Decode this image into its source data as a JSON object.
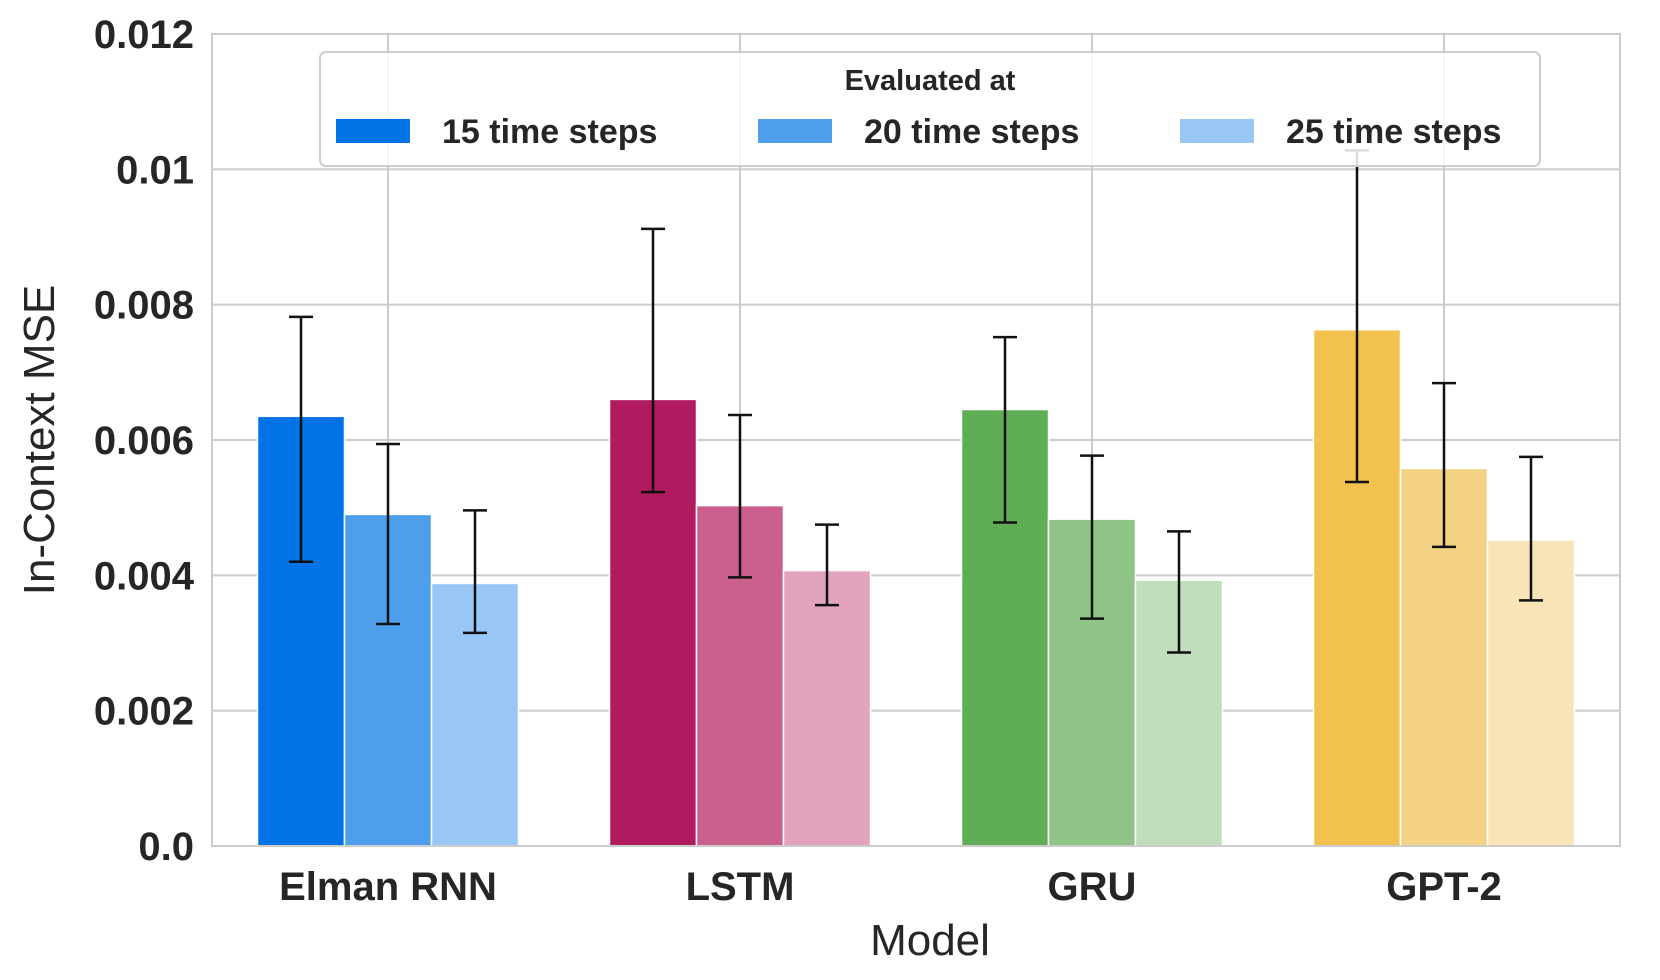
{
  "chart_data": {
    "type": "bar",
    "categories": [
      "Elman RNN",
      "LSTM",
      "GRU",
      "GPT-2"
    ],
    "xlabel": "Model",
    "ylabel": "In-Context MSE",
    "ylim": [
      0,
      0.012
    ],
    "yticks": [
      0,
      0.002,
      0.004,
      0.006,
      0.008,
      0.01,
      0.012
    ],
    "ytick_labels": [
      "0.0",
      "0.002",
      "0.004",
      "0.006",
      "0.008",
      "0.01",
      "0.012"
    ],
    "grid": true,
    "legend": {
      "title": "Evaluated at",
      "placement": "top-center",
      "entries": [
        "15 time steps",
        "20 time steps",
        "25 time steps"
      ]
    },
    "series": [
      {
        "name": "15 time steps",
        "values": [
          0.00635,
          0.0066,
          0.00645,
          0.00763
        ],
        "error_low": [
          0.0042,
          0.00523,
          0.00478,
          0.00538
        ],
        "error_high": [
          0.00782,
          0.00912,
          0.00752,
          0.01028
        ]
      },
      {
        "name": "20 time steps",
        "values": [
          0.0049,
          0.00503,
          0.00483,
          0.00558
        ],
        "error_low": [
          0.00328,
          0.00397,
          0.00336,
          0.00442
        ],
        "error_high": [
          0.00594,
          0.00637,
          0.00577,
          0.00684
        ]
      },
      {
        "name": "25 time steps",
        "values": [
          0.00388,
          0.00407,
          0.00393,
          0.00452
        ],
        "error_low": [
          0.00315,
          0.00356,
          0.00286,
          0.00363
        ],
        "error_high": [
          0.00496,
          0.00475,
          0.00465,
          0.00575
        ]
      }
    ],
    "colors": [
      [
        "#0073E6",
        "#4D9EEB",
        "#99C7F5"
      ],
      [
        "#B01A5E",
        "#CB5F8E",
        "#E1A3BE"
      ],
      [
        "#5FAD55",
        "#8FC487",
        "#C0DEBB"
      ],
      [
        "#F2C14E",
        "#F4D285",
        "#F8E4B7"
      ]
    ],
    "legend_colors": [
      "#0073E6",
      "#4D9EEB",
      "#99C7F5"
    ]
  }
}
